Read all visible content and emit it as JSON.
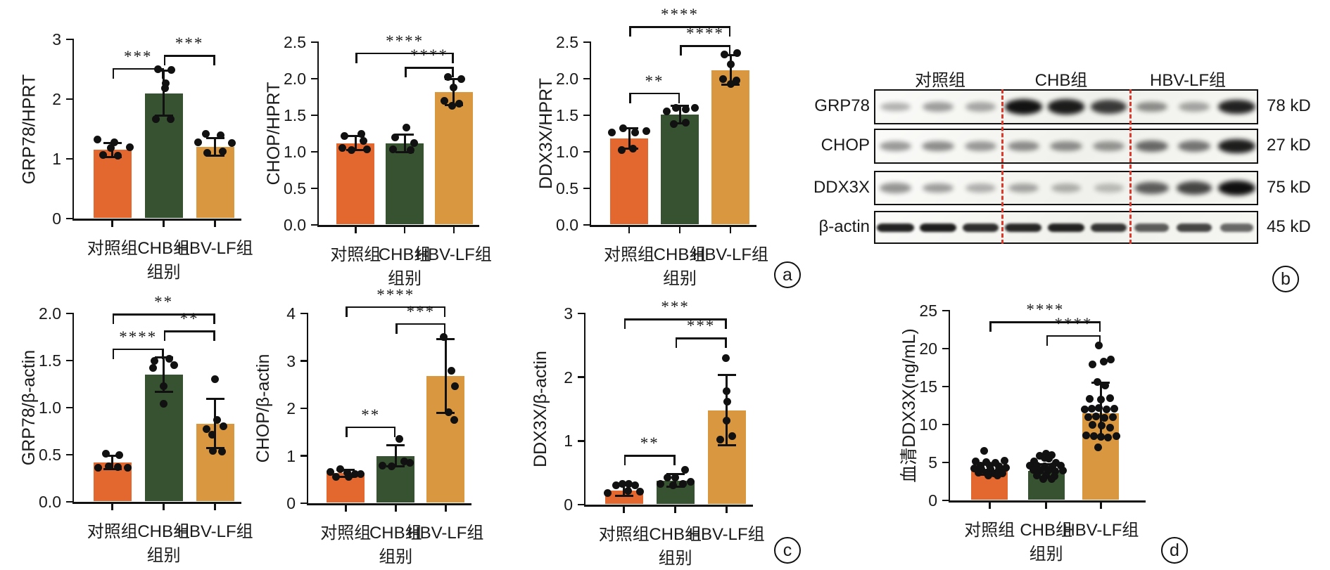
{
  "figure": {
    "panel_labels": {
      "a": "a",
      "b": "b",
      "c": "c",
      "d": "d"
    },
    "groups": [
      "对照组",
      "CHB组",
      "HBV-LF组"
    ],
    "xlabel": "组别",
    "colors": {
      "control": "#E2682F",
      "chb": "#375230",
      "hbv_lf": "#D9973F",
      "ink": "#111111",
      "dashed_line": "#D93A2B"
    }
  },
  "chart_data": [
    {
      "id": "a1",
      "panel": "a",
      "type": "bar",
      "ylabel": "GRP78/HPRT",
      "xlabel": "组别",
      "categories": [
        "对照组",
        "CHB组",
        "HBV-LF组"
      ],
      "values": [
        1.15,
        2.1,
        1.2
      ],
      "errors": [
        0.12,
        0.38,
        0.15
      ],
      "ymax": 3,
      "yticks": [
        "0",
        "1",
        "2",
        "3"
      ],
      "significance": [
        {
          "from": 0,
          "to": 1,
          "label": "***",
          "y": 2.52
        },
        {
          "from": 1,
          "to": 2,
          "label": "***",
          "y": 2.74
        }
      ],
      "points": [
        [
          [
            -0.8,
            1.32
          ],
          [
            0.1,
            1.28
          ],
          [
            0.9,
            1.2
          ],
          [
            -0.5,
            1.06
          ],
          [
            0.3,
            1.05
          ],
          [
            -0.1,
            1.18
          ]
        ],
        [
          [
            -0.3,
            2.5
          ],
          [
            0.4,
            2.49
          ],
          [
            0.1,
            2.27
          ],
          [
            0.05,
            2.18
          ],
          [
            -0.4,
            1.67
          ],
          [
            0.35,
            1.66
          ]
        ],
        [
          [
            -0.5,
            1.42
          ],
          [
            0.3,
            1.4
          ],
          [
            -0.9,
            1.28
          ],
          [
            0.9,
            1.26
          ],
          [
            -0.4,
            1.1
          ],
          [
            0.4,
            1.12
          ]
        ]
      ]
    },
    {
      "id": "a2",
      "panel": "a",
      "type": "bar",
      "ylabel": "CHOP/HPRT",
      "xlabel": "组别",
      "categories": [
        "对照组",
        "CHB组",
        "HBV-LF组"
      ],
      "values": [
        1.12,
        1.12,
        1.82
      ],
      "errors": [
        0.1,
        0.12,
        0.18
      ],
      "ymax": 2.5,
      "yticks": [
        "0.0",
        "0.5",
        "1.0",
        "1.5",
        "2.0",
        "2.5"
      ],
      "significance": [
        {
          "from": 1,
          "to": 2,
          "label": "****",
          "y": 2.16
        },
        {
          "from": 0,
          "to": 2,
          "label": "****",
          "y": 2.36
        }
      ],
      "points": [
        [
          [
            -0.6,
            1.22
          ],
          [
            0.3,
            1.25
          ],
          [
            0.4,
            1.15
          ],
          [
            -0.7,
            1.05
          ],
          [
            -0.2,
            1.02
          ],
          [
            0.6,
            1.03
          ]
        ],
        [
          [
            0.1,
            1.33
          ],
          [
            -0.5,
            1.2
          ],
          [
            0.5,
            1.12
          ],
          [
            -0.6,
            1.03
          ],
          [
            0.3,
            1.02
          ]
        ],
        [
          [
            -0.3,
            2.02
          ],
          [
            0.4,
            2.0
          ],
          [
            0.0,
            1.88
          ],
          [
            -0.5,
            1.7
          ],
          [
            0.3,
            1.66
          ],
          [
            -0.1,
            1.63
          ]
        ]
      ]
    },
    {
      "id": "a3",
      "panel": "a",
      "type": "bar",
      "ylabel": "DDX3X/HPRT",
      "xlabel": "组别",
      "categories": [
        "对照组",
        "CHB组",
        "HBV-LF组"
      ],
      "values": [
        1.18,
        1.51,
        2.12
      ],
      "errors": [
        0.14,
        0.12,
        0.2
      ],
      "ymax": 2.5,
      "yticks": [
        "0.0",
        "0.5",
        "1.0",
        "1.5",
        "2.0",
        "2.5"
      ],
      "significance": [
        {
          "from": 0,
          "to": 1,
          "label": "**",
          "y": 1.81
        },
        {
          "from": 1,
          "to": 2,
          "label": "****",
          "y": 2.46
        },
        {
          "from": 0,
          "to": 2,
          "label": "****",
          "y": 2.72
        }
      ],
      "points": [
        [
          [
            -0.9,
            1.26
          ],
          [
            -0.3,
            1.32
          ],
          [
            0.3,
            1.26
          ],
          [
            0.9,
            1.28
          ],
          [
            -0.4,
            1.02
          ],
          [
            0.2,
            1.04
          ]
        ],
        [
          [
            -0.7,
            1.55
          ],
          [
            -0.2,
            1.6
          ],
          [
            0.3,
            1.58
          ],
          [
            0.8,
            1.6
          ],
          [
            -0.3,
            1.38
          ],
          [
            0.3,
            1.4
          ]
        ],
        [
          [
            -0.3,
            2.33
          ],
          [
            0.35,
            2.35
          ],
          [
            0.0,
            2.2
          ],
          [
            -0.4,
            2.0
          ],
          [
            0.3,
            1.98
          ],
          [
            0.0,
            1.93
          ]
        ]
      ]
    },
    {
      "id": "c1",
      "panel": "c",
      "type": "bar",
      "ylabel": "GRP78/β-actin",
      "xlabel": "组别",
      "categories": [
        "对照组",
        "CHB组",
        "HBV-LF组"
      ],
      "values": [
        0.42,
        1.35,
        0.83
      ],
      "errors": [
        0.07,
        0.18,
        0.26
      ],
      "ymax": 2,
      "yticks": [
        "0.0",
        "0.5",
        "1.0",
        "1.5",
        "2.0"
      ],
      "significance": [
        {
          "from": 0,
          "to": 1,
          "label": "****",
          "y": 1.63
        },
        {
          "from": 1,
          "to": 2,
          "label": "**",
          "y": 1.82
        },
        {
          "from": 0,
          "to": 2,
          "label": "**",
          "y": 2.0
        }
      ],
      "points": [
        [
          [
            -0.35,
            0.51
          ],
          [
            0.35,
            0.5
          ],
          [
            -0.75,
            0.36
          ],
          [
            -0.2,
            0.38
          ],
          [
            0.3,
            0.37
          ],
          [
            0.8,
            0.36
          ]
        ],
        [
          [
            -0.5,
            1.5
          ],
          [
            0.3,
            1.52
          ],
          [
            0.55,
            1.45
          ],
          [
            -0.55,
            1.42
          ],
          [
            0.0,
            1.23
          ],
          [
            0.0,
            1.04
          ]
        ],
        [
          [
            0.0,
            1.3
          ],
          [
            0.1,
            0.87
          ],
          [
            0.45,
            0.8
          ],
          [
            -0.45,
            0.77
          ],
          [
            -0.15,
            0.71
          ],
          [
            -0.1,
            0.54
          ],
          [
            0.35,
            0.53
          ]
        ]
      ]
    },
    {
      "id": "c2",
      "panel": "c",
      "type": "bar",
      "ylabel": "CHOP/β-actin",
      "xlabel": "组别",
      "categories": [
        "对照组",
        "CHB组",
        "HBV-LF组"
      ],
      "values": [
        0.63,
        1.0,
        2.68
      ],
      "errors": [
        0.08,
        0.22,
        0.78
      ],
      "ymax": 4,
      "yticks": [
        "0",
        "1",
        "2",
        "3",
        "4"
      ],
      "significance": [
        {
          "from": 0,
          "to": 1,
          "label": "**",
          "y": 1.62
        },
        {
          "from": 1,
          "to": 2,
          "label": "***",
          "y": 3.8
        },
        {
          "from": 0,
          "to": 2,
          "label": "****",
          "y": 4.15
        }
      ],
      "points": [
        [
          [
            -0.8,
            0.66
          ],
          [
            -0.3,
            0.72
          ],
          [
            0.1,
            0.65
          ],
          [
            0.5,
            0.62
          ],
          [
            -0.5,
            0.55
          ],
          [
            0.15,
            0.55
          ],
          [
            0.8,
            0.62
          ]
        ],
        [
          [
            0.2,
            1.35
          ],
          [
            -0.7,
            0.8
          ],
          [
            -0.2,
            0.78
          ],
          [
            0.45,
            0.88
          ],
          [
            0.75,
            0.85
          ]
        ],
        [
          [
            -0.1,
            3.5
          ],
          [
            0.3,
            2.8
          ],
          [
            0.5,
            2.47
          ],
          [
            0.15,
            1.92
          ],
          [
            0.45,
            1.75
          ]
        ]
      ]
    },
    {
      "id": "c3",
      "panel": "c",
      "type": "bar",
      "ylabel": "DDX3X/β-actin",
      "xlabel": "组别",
      "categories": [
        "对照组",
        "CHB组",
        "HBV-LF组"
      ],
      "values": [
        0.22,
        0.38,
        1.48
      ],
      "errors": [
        0.08,
        0.1,
        0.55
      ],
      "ymax": 3,
      "yticks": [
        "0",
        "1",
        "2",
        "3"
      ],
      "significance": [
        {
          "from": 0,
          "to": 1,
          "label": "**",
          "y": 0.78
        },
        {
          "from": 1,
          "to": 2,
          "label": "***",
          "y": 2.62
        },
        {
          "from": 0,
          "to": 2,
          "label": "***",
          "y": 2.92
        }
      ],
      "points": [
        [
          [
            -0.85,
            0.18
          ],
          [
            -0.4,
            0.3
          ],
          [
            -0.1,
            0.32
          ],
          [
            0.25,
            0.32
          ],
          [
            0.6,
            0.3
          ],
          [
            0.2,
            0.22
          ],
          [
            0.85,
            0.2
          ]
        ],
        [
          [
            -0.8,
            0.33
          ],
          [
            -0.4,
            0.43
          ],
          [
            0.0,
            0.43
          ],
          [
            0.5,
            0.55
          ],
          [
            0.4,
            0.33
          ],
          [
            0.8,
            0.36
          ],
          [
            -0.1,
            0.3
          ]
        ],
        [
          [
            -0.05,
            2.3
          ],
          [
            0.0,
            1.78
          ],
          [
            0.05,
            1.62
          ],
          [
            0.0,
            1.32
          ],
          [
            -0.35,
            1.02
          ],
          [
            0.3,
            1.08
          ]
        ]
      ]
    },
    {
      "id": "d",
      "panel": "d",
      "type": "bar",
      "ylabel": "血清DDX3X(ng/mL)",
      "xlabel": "组别",
      "categories": [
        "对照组",
        "CHB组",
        "HBV-LF组"
      ],
      "values": [
        4.1,
        3.9,
        11.5
      ],
      "errors": [
        0.7,
        0.9,
        3.55
      ],
      "error_mid": [
        4.1,
        3.9,
        11.95
      ],
      "ymax": 25,
      "yticks": [
        "0",
        "5",
        "10",
        "15",
        "20",
        "25"
      ],
      "significance": [
        {
          "from": 1,
          "to": 2,
          "label": "****",
          "y": 21.8
        },
        {
          "from": 0,
          "to": 2,
          "label": "****",
          "y": 23.6
        }
      ],
      "points": [
        [
          [
            -0.3,
            6.5
          ],
          [
            -0.75,
            5.1
          ],
          [
            -0.2,
            5.05
          ],
          [
            0.3,
            5.0
          ],
          [
            0.8,
            5.2
          ],
          [
            -0.5,
            4.6
          ],
          [
            0.0,
            4.55
          ],
          [
            0.5,
            4.5
          ],
          [
            -0.85,
            4.2
          ],
          [
            -0.45,
            4.15
          ],
          [
            0.05,
            4.1
          ],
          [
            0.5,
            4.05
          ],
          [
            0.9,
            4.3
          ],
          [
            -0.6,
            3.7
          ],
          [
            -0.2,
            3.65
          ],
          [
            0.25,
            3.6
          ],
          [
            0.7,
            3.55
          ],
          [
            -0.05,
            3.3
          ],
          [
            0.45,
            3.25
          ]
        ],
        [
          [
            0.0,
            6.2
          ],
          [
            -0.35,
            5.9
          ],
          [
            0.3,
            5.95
          ],
          [
            -0.1,
            5.6
          ],
          [
            0.15,
            5.5
          ],
          [
            -0.65,
            5.1
          ],
          [
            0.55,
            5.0
          ],
          [
            -0.9,
            4.6
          ],
          [
            -0.5,
            4.55
          ],
          [
            -0.1,
            4.5
          ],
          [
            0.35,
            4.45
          ],
          [
            0.8,
            4.6
          ],
          [
            -0.7,
            4.0
          ],
          [
            -0.3,
            3.95
          ],
          [
            0.1,
            3.9
          ],
          [
            0.5,
            3.85
          ],
          [
            0.9,
            3.9
          ],
          [
            -0.5,
            3.3
          ],
          [
            0.0,
            3.25
          ],
          [
            0.45,
            3.2
          ],
          [
            -0.15,
            2.85
          ],
          [
            0.3,
            2.8
          ]
        ],
        [
          [
            -0.1,
            20.4
          ],
          [
            -0.45,
            17.9
          ],
          [
            0.15,
            18.3
          ],
          [
            0.55,
            18.6
          ],
          [
            -0.2,
            15.6
          ],
          [
            0.25,
            15.1
          ],
          [
            -0.6,
            13.4
          ],
          [
            0.0,
            13.3
          ],
          [
            0.5,
            13.5
          ],
          [
            -0.9,
            12.0
          ],
          [
            -0.5,
            12.1
          ],
          [
            -0.1,
            12.2
          ],
          [
            0.3,
            12.0
          ],
          [
            0.75,
            12.1
          ],
          [
            -0.7,
            11.0
          ],
          [
            -0.25,
            11.1
          ],
          [
            0.2,
            10.9
          ],
          [
            0.65,
            11.0
          ],
          [
            -0.45,
            10.0
          ],
          [
            0.05,
            9.9
          ],
          [
            0.5,
            9.6
          ],
          [
            -0.8,
            8.6
          ],
          [
            -0.4,
            8.5
          ],
          [
            0.0,
            8.4
          ],
          [
            0.4,
            8.3
          ],
          [
            0.85,
            8.5
          ],
          [
            -0.15,
            7.0
          ]
        ]
      ]
    },
    {
      "id": "b",
      "panel": "b",
      "type": "western_blot",
      "group_headers": [
        "对照组",
        "CHB组",
        "HBV-LF组"
      ],
      "lanes_per_group": 3,
      "rows": [
        {
          "protein": "GRP78",
          "size": "78 kD",
          "lane_intensities": [
            0.3,
            0.38,
            0.34,
            0.97,
            0.93,
            0.8,
            0.45,
            0.35,
            0.9
          ]
        },
        {
          "protein": "CHOP",
          "size": "27 kD",
          "lane_intensities": [
            0.4,
            0.45,
            0.4,
            0.45,
            0.45,
            0.42,
            0.6,
            0.55,
            0.92
          ]
        },
        {
          "protein": "DDX3X",
          "size": "75 kD",
          "lane_intensities": [
            0.42,
            0.38,
            0.3,
            0.35,
            0.3,
            0.25,
            0.65,
            0.75,
            0.98
          ]
        },
        {
          "protein": "β-actin",
          "size": "45 kD",
          "lane_intensities": [
            0.9,
            0.92,
            0.85,
            0.88,
            0.9,
            0.82,
            0.65,
            0.75,
            0.6
          ]
        }
      ]
    }
  ]
}
